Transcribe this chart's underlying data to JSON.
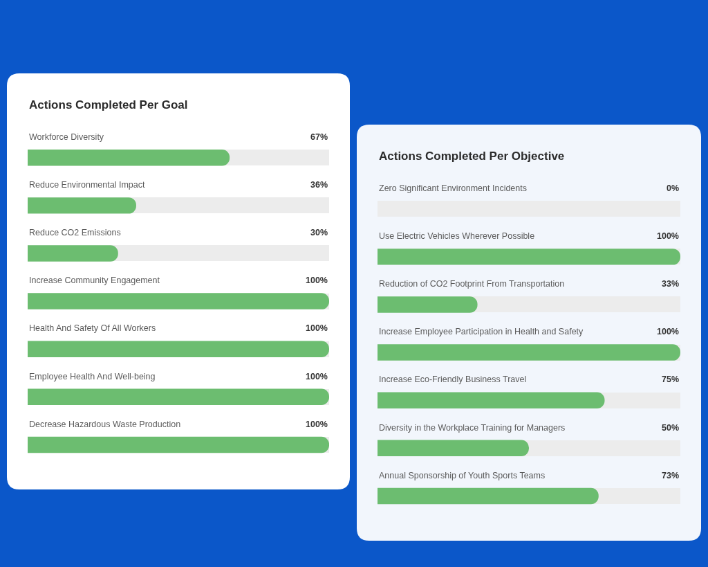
{
  "chart_data": [
    {
      "type": "bar",
      "orientation": "horizontal",
      "title": "Actions Completed Per Goal",
      "categories": [
        "Workforce Diversity",
        "Reduce Environmental Impact",
        "Reduce CO2 Emissions",
        "Increase Community Engagement",
        "Health And Safety Of All Workers",
        "Employee Health And Well-being",
        "Decrease Hazardous Waste Production"
      ],
      "values": [
        67,
        36,
        30,
        100,
        100,
        100,
        100
      ],
      "value_labels": [
        "67%",
        "36%",
        "30%",
        "100%",
        "100%",
        "100%",
        "100%"
      ],
      "color": "#6cbd70",
      "xlim": [
        0,
        100
      ],
      "tick_labels": "y",
      "grid": "y"
    },
    {
      "type": "bar",
      "orientation": "horizontal",
      "title": "Actions Completed Per Objective",
      "categories": [
        "Zero Significant Environment Incidents",
        "Use Electric Vehicles Wherever Possible",
        "Reduction of CO2 Footprint From Transportation",
        "Increase Employee Participation in Health and Safety",
        "Increase Eco-Friendly Business Travel",
        "Diversity in the Workplace Training for Managers",
        "Annual Sponsorship of Youth Sports Teams"
      ],
      "values": [
        0,
        100,
        33,
        100,
        75,
        50,
        73
      ],
      "value_labels": [
        "0%",
        "100%",
        "33%",
        "100%",
        "75%",
        "50%",
        "73%"
      ],
      "color": "#6cbd70",
      "xlim": [
        0,
        100
      ],
      "tick_labels": "y",
      "grid": "y"
    }
  ]
}
